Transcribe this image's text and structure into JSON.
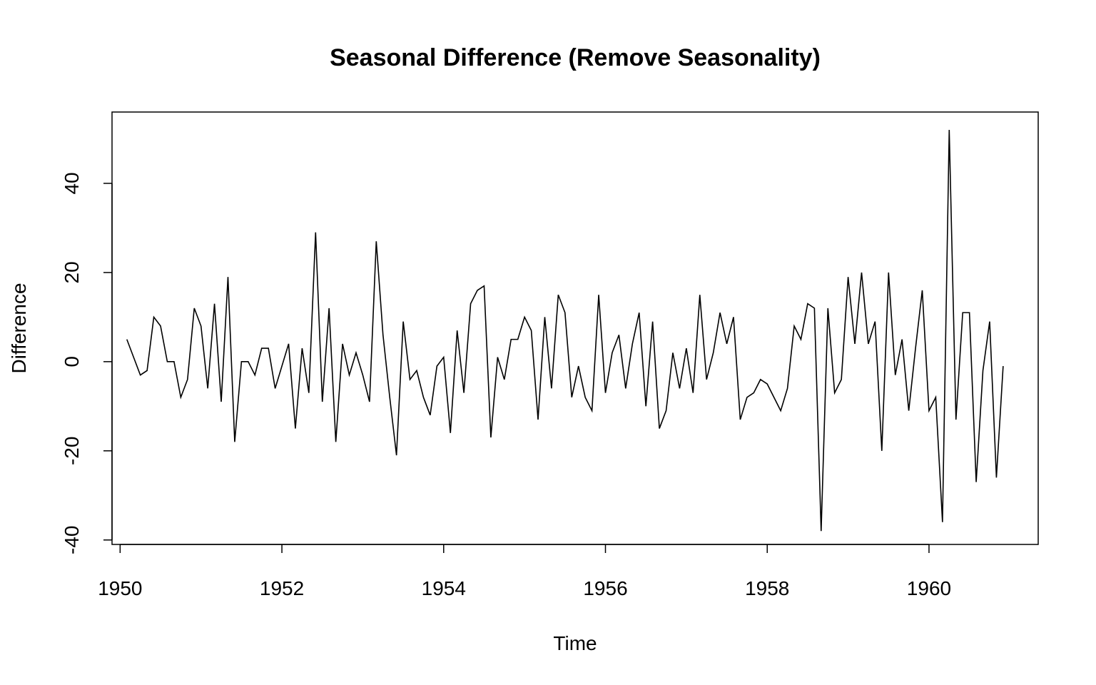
{
  "chart_data": {
    "type": "line",
    "title": "Seasonal Difference (Remove Seasonality)",
    "xlabel": "Time",
    "ylabel": "Difference",
    "xlim": [
      1949.9,
      1961.35
    ],
    "ylim": [
      -41,
      56
    ],
    "x_ticks": [
      1950,
      1952,
      1954,
      1956,
      1958,
      1960
    ],
    "x_tick_labels": [
      "1950",
      "1952",
      "1954",
      "1956",
      "1958",
      "1960"
    ],
    "y_ticks": [
      -40,
      -20,
      0,
      20,
      40
    ],
    "y_tick_labels": [
      "-40",
      "-20",
      "0",
      "20",
      "40"
    ],
    "grid": false,
    "series": [
      {
        "x_start": 1950.0833,
        "x_step": 0.083333,
        "values": [
          5,
          1,
          -3,
          -2,
          10,
          8,
          0,
          0,
          -8,
          -4,
          12,
          8,
          -6,
          13,
          -9,
          19,
          -18,
          0,
          0,
          -3,
          3,
          3,
          -6,
          -1,
          4,
          -15,
          3,
          -7,
          29,
          -9,
          12,
          -18,
          4,
          -3,
          2,
          -3,
          -9,
          27,
          6,
          -8,
          -21,
          9,
          -4,
          -2,
          -8,
          -12,
          -1,
          1,
          -16,
          7,
          -7,
          13,
          16,
          17,
          -17,
          1,
          -4,
          5,
          5,
          10,
          7,
          -13,
          10,
          -6,
          15,
          11,
          -8,
          -1,
          -8,
          -11,
          15,
          -7,
          2,
          6,
          -6,
          4,
          11,
          -10,
          9,
          -15,
          -11,
          2,
          -6,
          3,
          -7,
          15,
          -4,
          2,
          11,
          4,
          10,
          -13,
          -8,
          -7,
          -4,
          -5,
          -8,
          -11,
          -6,
          8,
          5,
          13,
          12,
          -38,
          12,
          -7,
          -4,
          19,
          4,
          20,
          4,
          9,
          -20,
          20,
          -3,
          5,
          -11,
          3,
          16,
          -11,
          -8,
          -36,
          52,
          -13,
          11,
          11,
          -27,
          -2,
          9,
          -26,
          -1
        ]
      }
    ]
  }
}
